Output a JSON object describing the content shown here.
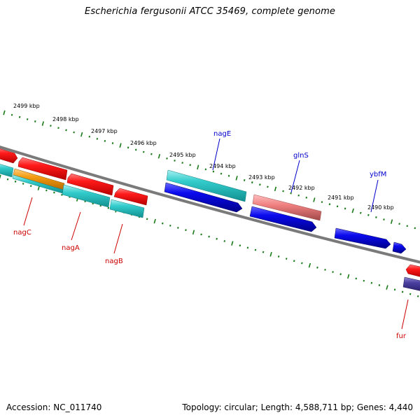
{
  "title": "Escherichia fergusonii ATCC 35469, complete genome",
  "footer": {
    "accession": "Accession: NC_011740",
    "summary": "Topology: circular; Length: 4,588,711 bp; Genes: 4,440"
  },
  "colors": {
    "backbone": "#7a7a7a",
    "tick": "#1a7a1a",
    "gene_red": "#e80000",
    "gene_cyan": "#2ec8c8",
    "gene_orange": "#f39a10",
    "gene_blue": "#0000e0",
    "gene_pink": "#f08080",
    "gene_purple": "#4a3fa0",
    "label_red": "#cc0000",
    "label_blue": "#0000cc"
  },
  "kbp_ticks": [
    "2499 kbp",
    "2498 kbp",
    "2497 kbp",
    "2496 kbp",
    "2495 kbp",
    "2494 kbp",
    "2493 kbp",
    "2492 kbp",
    "2491 kbp",
    "2490 kbp"
  ],
  "gene_labels": {
    "nagE": "nagE",
    "glnS": "glnS",
    "ybfM": "ybfM",
    "nagC": "nagC",
    "nagA": "nagA",
    "nagB": "nagB",
    "fur": "fur"
  }
}
